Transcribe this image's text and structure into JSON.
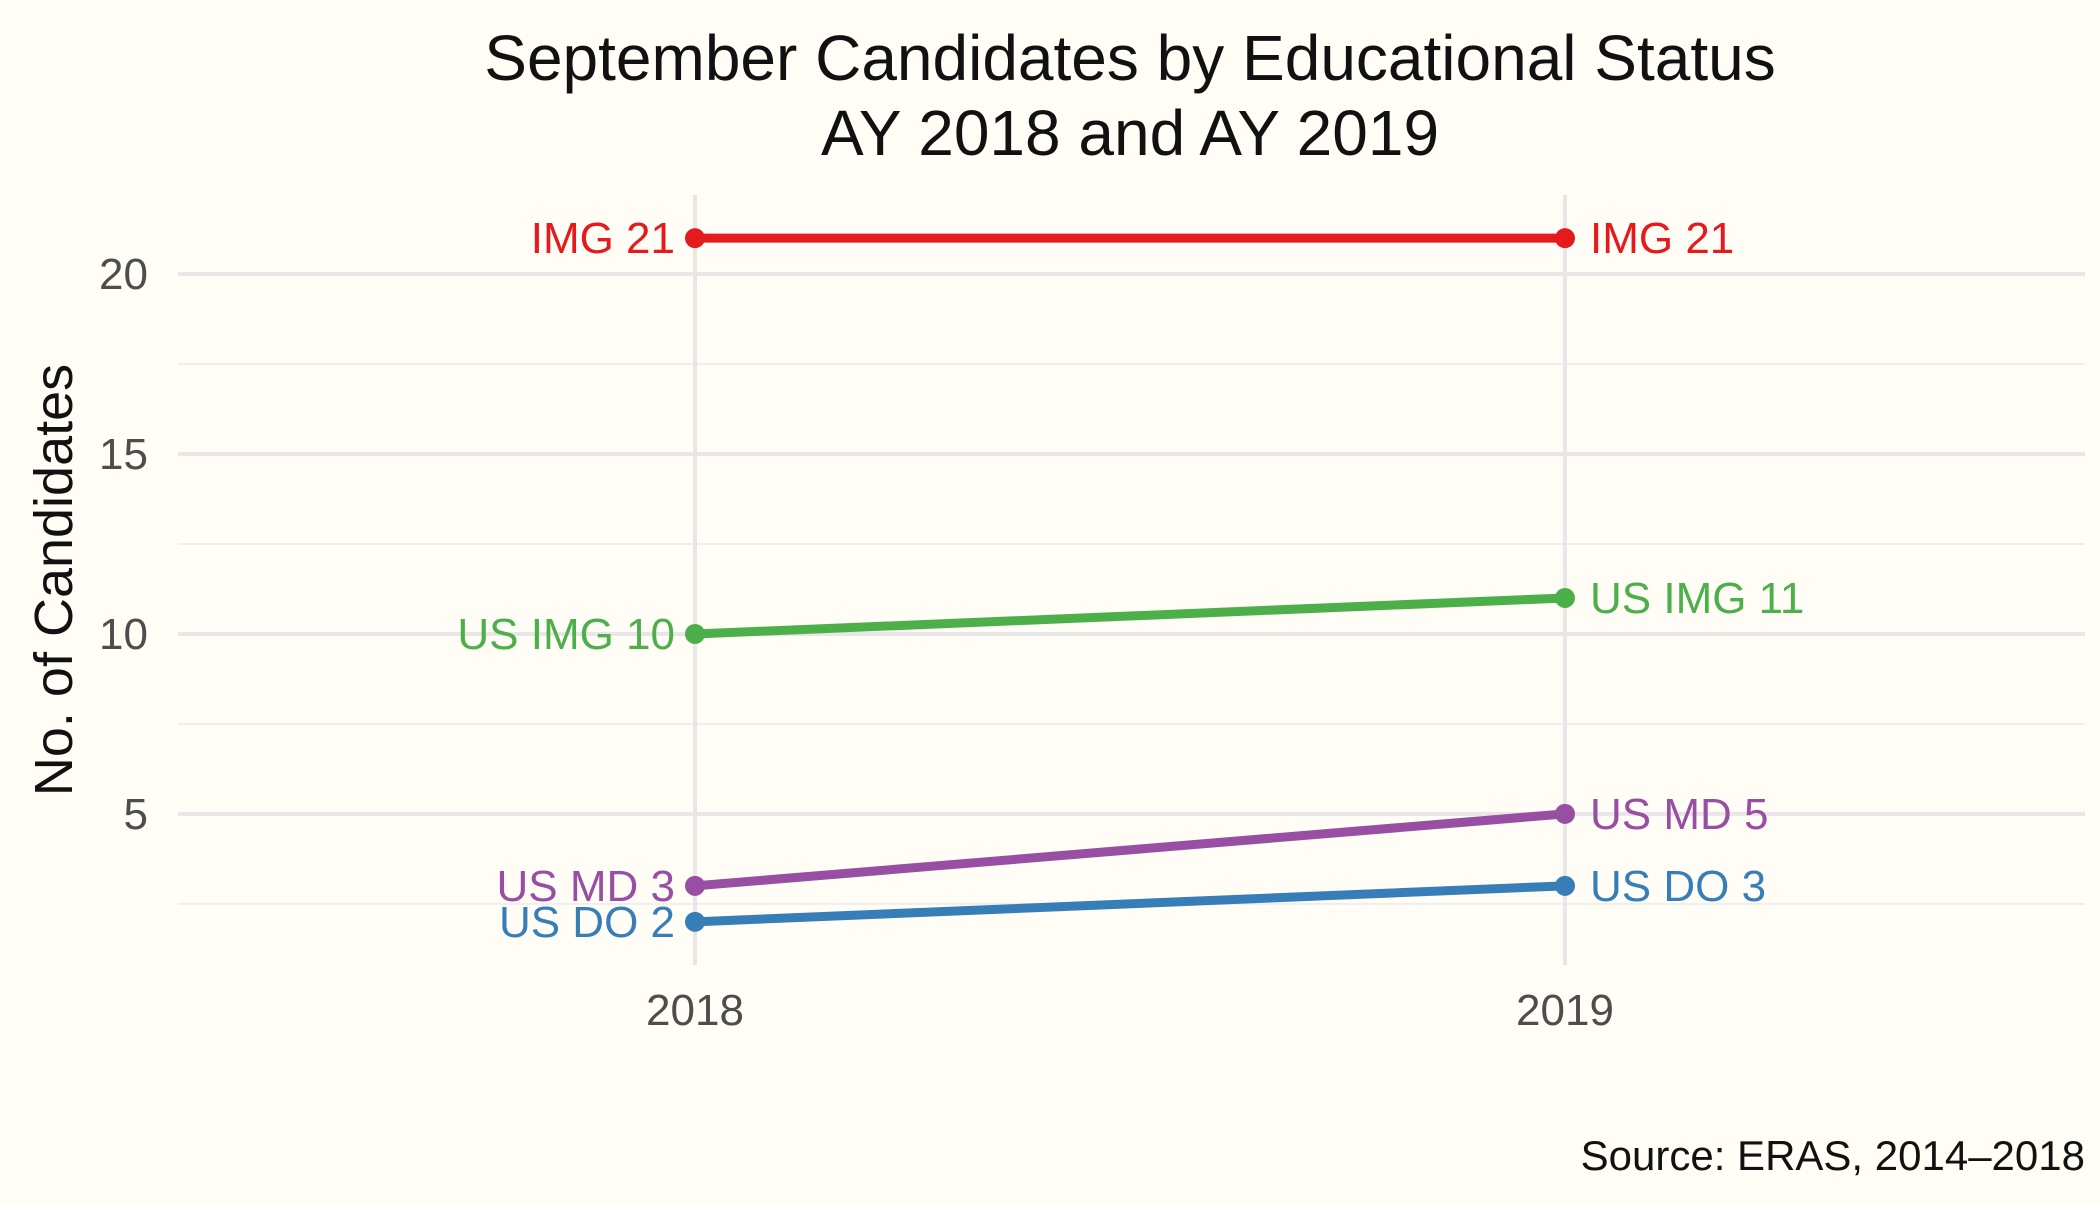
{
  "chart_data": {
    "type": "line",
    "title": "September Candidates by Educational Status",
    "subtitle": "AY 2018 and AY 2019",
    "xlabel": "",
    "ylabel": "No. of Candidates",
    "categories": [
      "2018",
      "2019"
    ],
    "ylim": [
      0.8,
      22.2
    ],
    "yticks": [
      5,
      10,
      15,
      20
    ],
    "grid": true,
    "legend": "none (direct labels)",
    "caption": "Source: ERAS, 2014–2018",
    "series": [
      {
        "name": "IMG",
        "color": "#e41a1c",
        "values": [
          21,
          21
        ],
        "labels": [
          "IMG 21",
          "IMG 21"
        ]
      },
      {
        "name": "US IMG",
        "color": "#4daf4a",
        "values": [
          10,
          11
        ],
        "labels": [
          "US IMG 10",
          "US IMG 11"
        ]
      },
      {
        "name": "US MD",
        "color": "#984ea3",
        "values": [
          3,
          5
        ],
        "labels": [
          "US MD 3",
          "US MD 5"
        ]
      },
      {
        "name": "US DO",
        "color": "#377eb8",
        "values": [
          2,
          3
        ],
        "labels": [
          "US DO 2",
          "US DO 3"
        ]
      }
    ]
  }
}
